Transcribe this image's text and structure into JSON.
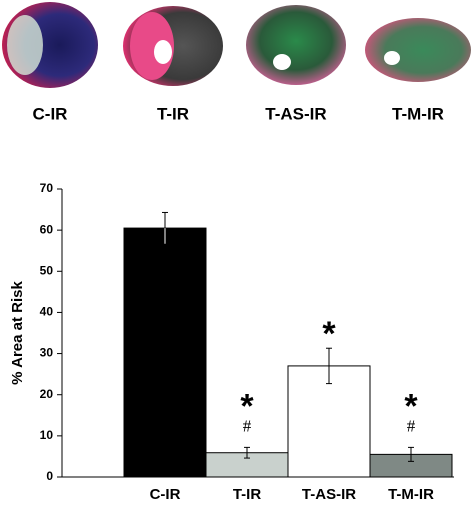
{
  "image_labels": [
    "C-IR",
    "T-IR",
    "T-AS-IR",
    "T-M-IR"
  ],
  "chart_data": {
    "type": "bar",
    "y_label": "% Area at Risk",
    "categories": [
      "C-IR",
      "T-IR",
      "T-AS-IR",
      "T-M-IR"
    ],
    "values": [
      60.5,
      5.9,
      27,
      5.5
    ],
    "errors": [
      3.8,
      1.3,
      4.3,
      1.7
    ],
    "colors": [
      "#000000",
      "#c9d1cd",
      "#ffffff",
      "#7f8985"
    ],
    "ylim": [
      0,
      70
    ],
    "yticks": [
      0,
      10,
      20,
      30,
      40,
      50,
      60,
      70
    ],
    "annotations": [
      {
        "category": "T-IR",
        "texts": [
          "#",
          "*"
        ]
      },
      {
        "category": "T-AS-IR",
        "texts": [
          "*"
        ]
      },
      {
        "category": "T-M-IR",
        "texts": [
          "#",
          "*"
        ]
      }
    ]
  }
}
